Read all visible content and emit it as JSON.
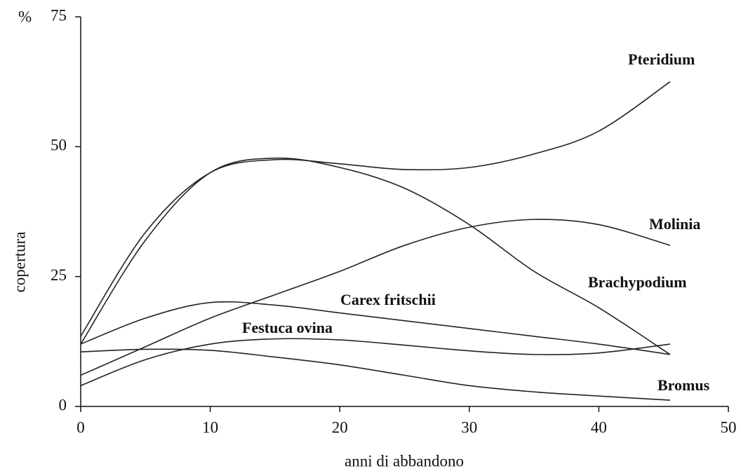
{
  "chart_data": {
    "type": "line",
    "y_label": "copertura",
    "y_unit": "%",
    "x_label": "anni di abbandono",
    "x": [
      0,
      5,
      10,
      15,
      20,
      25,
      30,
      35,
      40,
      45.5
    ],
    "series": [
      {
        "name": "Pteridium",
        "color": "#222222",
        "values": [
          13.5,
          33.5,
          45,
          47.5,
          46.7,
          45.6,
          46,
          48.6,
          53,
          62.5
        ]
      },
      {
        "name": "Molinia",
        "color": "#222222",
        "values": [
          6,
          11.5,
          17,
          21.5,
          26,
          31,
          34.5,
          36,
          35,
          31
        ]
      },
      {
        "name": "Brachypodium",
        "color": "#222222",
        "values": [
          12,
          32,
          45,
          47.8,
          46,
          42,
          35,
          26,
          19,
          10
        ]
      },
      {
        "name": "Carex fritschii",
        "color": "#222222",
        "values": [
          12,
          17,
          20,
          19.5,
          18,
          16.5,
          15,
          13.5,
          12,
          10
        ]
      },
      {
        "name": "Festuca ovina",
        "color": "#222222",
        "values": [
          4,
          9,
          12,
          13,
          12.8,
          11.8,
          10.7,
          10,
          10.3,
          12
        ]
      },
      {
        "name": "Bromus",
        "color": "#222222",
        "values": [
          10.5,
          11,
          10.8,
          9.5,
          8,
          6,
          4,
          2.8,
          2,
          1.2
        ]
      }
    ],
    "xlim": [
      0,
      50
    ],
    "xticks": [
      0,
      10,
      20,
      30,
      40,
      50
    ],
    "ylim": [
      0,
      75
    ],
    "yticks": [
      0,
      25,
      50,
      75
    ],
    "grid": false
  }
}
